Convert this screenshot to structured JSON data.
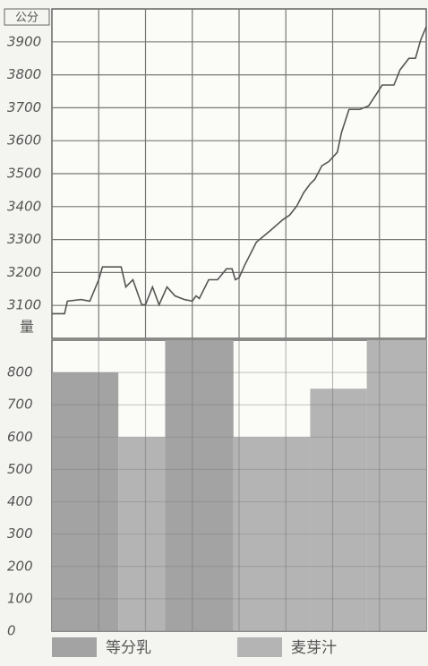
{
  "chart_data": [
    {
      "type": "line",
      "y_label": "公分",
      "x": [
        0,
        0.27,
        0.33,
        0.62,
        0.81,
        1,
        1.08,
        1.48,
        1.58,
        1.73,
        1.92,
        2,
        2.15,
        2.29,
        2.46,
        2.63,
        2.83,
        3,
        3.08,
        3.15,
        3.35,
        3.54,
        3.73,
        3.85,
        3.92,
        4,
        4.12,
        4.37,
        4.65,
        4.94,
        5.08,
        5.23,
        5.38,
        5.52,
        5.62,
        5.77,
        5.92,
        6.1,
        6.19,
        6.35,
        6.58,
        6.77,
        7.06,
        7.31,
        7.44,
        7.63,
        7.77,
        7.88,
        8
      ],
      "series": [
        {
          "color": "#555555",
          "values": [
            3075,
            3075,
            3113,
            3118,
            3113,
            3178,
            3217,
            3217,
            3156,
            3178,
            3102,
            3102,
            3156,
            3102,
            3156,
            3129,
            3118,
            3113,
            3129,
            3121,
            3178,
            3178,
            3211,
            3211,
            3178,
            3184,
            3222,
            3292,
            3325,
            3361,
            3374,
            3401,
            3442,
            3469,
            3483,
            3524,
            3537,
            3565,
            3625,
            3695,
            3695,
            3706,
            3769,
            3769,
            3815,
            3850,
            3850,
            3905,
            3946
          ]
        }
      ],
      "xlim": [
        0,
        8
      ],
      "ylim": [
        3000,
        4000
      ],
      "yticks": [
        3100,
        3200,
        3300,
        3400,
        3500,
        3600,
        3700,
        3800,
        3900
      ],
      "grid": true
    },
    {
      "type": "histogram",
      "y_label": "量",
      "bins": [
        0,
        1.42,
        2.42,
        3.88,
        5.52,
        6.73,
        8
      ],
      "series": [
        {
          "name": "等分乳",
          "color": "#a3a3a3",
          "values": [
            800,
            null,
            900,
            null,
            null,
            null
          ]
        },
        {
          "name": "麦芽汁",
          "color": "#b4b4b4",
          "values": [
            null,
            600,
            null,
            600,
            750,
            900
          ]
        }
      ],
      "xlim": [
        0,
        8
      ],
      "ylim": [
        0,
        900
      ],
      "yticks": [
        0,
        100,
        200,
        300,
        400,
        500,
        600,
        700,
        800
      ],
      "grid": true
    }
  ]
}
